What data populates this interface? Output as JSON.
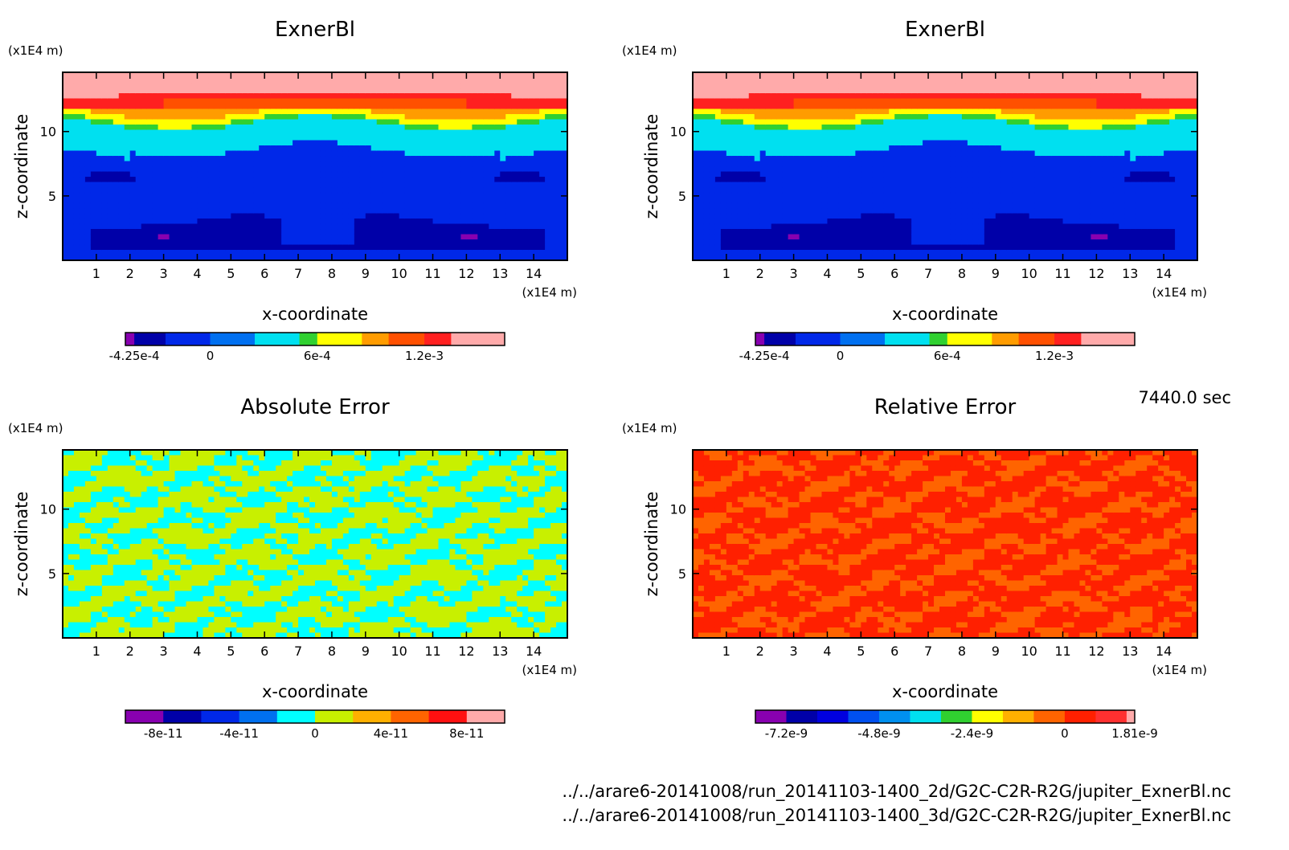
{
  "chart_data": [
    {
      "type": "heatmap",
      "title": "ExnerBl",
      "xlabel": "x-coordinate",
      "ylabel": "z-coordinate",
      "xunit": "(x1E4 m)",
      "yunit": "(x1E4 m)",
      "xlim": [
        0,
        15
      ],
      "ylim": [
        0,
        14.6
      ],
      "xticks": [
        "1",
        "2",
        "3",
        "4",
        "5",
        "6",
        "7",
        "8",
        "9",
        "10",
        "11",
        "12",
        "13",
        "14"
      ],
      "yticks": [
        "5",
        "10"
      ],
      "field": "exner",
      "colorbar": {
        "min": -0.000475,
        "max": 0.00165,
        "levels": [
          -0.000475,
          -0.000425,
          -0.00025,
          0,
          0.00025,
          0.0005,
          0.0006,
          0.00085,
          0.001,
          0.0012,
          0.00135,
          0.00165
        ],
        "colors": [
          "#8800b0",
          "#0000a8",
          "#0028e8",
          "#0070f0",
          "#00e0f0",
          "#30d030",
          "#ffff00",
          "#ff9c00",
          "#ff5000",
          "#ff2020",
          "#ffaaaa"
        ],
        "tick_values": [
          -0.000425,
          0,
          0.0006,
          0.0012
        ],
        "tick_labels": [
          "-4.25e-4",
          "0",
          "6e-4",
          "1.2e-3"
        ]
      }
    },
    {
      "type": "heatmap",
      "title": "ExnerBl",
      "xlabel": "x-coordinate",
      "ylabel": "z-coordinate",
      "xunit": "(x1E4 m)",
      "yunit": "(x1E4 m)",
      "xlim": [
        0,
        15
      ],
      "ylim": [
        0,
        14.6
      ],
      "xticks": [
        "1",
        "2",
        "3",
        "4",
        "5",
        "6",
        "7",
        "8",
        "9",
        "10",
        "11",
        "12",
        "13",
        "14"
      ],
      "yticks": [
        "5",
        "10"
      ],
      "field": "exner",
      "colorbar": {
        "min": -0.000475,
        "max": 0.00165,
        "levels": [
          -0.000475,
          -0.000425,
          -0.00025,
          0,
          0.00025,
          0.0005,
          0.0006,
          0.00085,
          0.001,
          0.0012,
          0.00135,
          0.00165
        ],
        "colors": [
          "#8800b0",
          "#0000a8",
          "#0028e8",
          "#0070f0",
          "#00e0f0",
          "#30d030",
          "#ffff00",
          "#ff9c00",
          "#ff5000",
          "#ff2020",
          "#ffaaaa"
        ],
        "tick_values": [
          -0.000425,
          0,
          0.0006,
          0.0012
        ],
        "tick_labels": [
          "-4.25e-4",
          "0",
          "6e-4",
          "1.2e-3"
        ]
      }
    },
    {
      "type": "heatmap",
      "title": "Absolute Error",
      "xlabel": "x-coordinate",
      "ylabel": "z-coordinate",
      "xunit": "(x1E4 m)",
      "yunit": "(x1E4 m)",
      "xlim": [
        0,
        15
      ],
      "ylim": [
        0,
        14.6
      ],
      "xticks": [
        "1",
        "2",
        "3",
        "4",
        "5",
        "6",
        "7",
        "8",
        "9",
        "10",
        "11",
        "12",
        "13",
        "14"
      ],
      "yticks": [
        "5",
        "10"
      ],
      "field": "abs",
      "colorbar": {
        "min": -1e-10,
        "max": 1e-10,
        "levels": [
          -1e-10,
          -8e-11,
          -6e-11,
          -4e-11,
          -2e-11,
          0,
          2e-11,
          4e-11,
          6e-11,
          8e-11,
          1e-10
        ],
        "colors": [
          "#8800b0",
          "#0000a8",
          "#0028e8",
          "#0070f0",
          "#00ffff",
          "#c8f000",
          "#ffb000",
          "#ff6400",
          "#ff1010",
          "#ffaaaa"
        ],
        "tick_values": [
          -8e-11,
          -4e-11,
          0,
          4e-11,
          8e-11
        ],
        "tick_labels": [
          "-8e-11",
          "-4e-11",
          "0",
          "4e-11",
          "8e-11"
        ]
      }
    },
    {
      "type": "heatmap",
      "title": "Relative Error",
      "xlabel": "x-coordinate",
      "ylabel": "z-coordinate",
      "xunit": "(x1E4 m)",
      "yunit": "(x1E4 m)",
      "xlim": [
        0,
        15
      ],
      "ylim": [
        0,
        14.6
      ],
      "xticks": [
        "1",
        "2",
        "3",
        "4",
        "5",
        "6",
        "7",
        "8",
        "9",
        "10",
        "11",
        "12",
        "13",
        "14"
      ],
      "yticks": [
        "5",
        "10"
      ],
      "field": "rel",
      "colorbar": {
        "min": -8e-09,
        "max": 1.81e-09,
        "levels": [
          -8e-09,
          -7.2e-09,
          -6.4e-09,
          -5.6e-09,
          -4.8e-09,
          -4e-09,
          -3.2e-09,
          -2.4e-09,
          -1.6e-09,
          -8e-10,
          0,
          8e-10,
          1.6e-09,
          1.81e-09
        ],
        "colors": [
          "#8800b0",
          "#0000a8",
          "#0000e0",
          "#0050f0",
          "#0090f0",
          "#00e0f0",
          "#30d030",
          "#ffff00",
          "#ffb000",
          "#ff6400",
          "#ff2000",
          "#ff3030",
          "#ffaaaa"
        ],
        "tick_values": [
          -7.2e-09,
          -4.8e-09,
          -2.4e-09,
          0,
          1.81e-09
        ],
        "tick_labels": [
          "-7.2e-9",
          "-4.8e-9",
          "-2.4e-9",
          "0",
          "1.81e-9"
        ]
      }
    }
  ],
  "time_label": "7440.0 sec",
  "footer": {
    "file1": "../../arare6-20141008/run_20141103-1400_2d/G2C-C2R-R2G/jupiter_ExnerBl.nc",
    "file2": "../../arare6-20141008/run_20141103-1400_3d/G2C-C2R-R2G/jupiter_ExnerBl.nc"
  }
}
